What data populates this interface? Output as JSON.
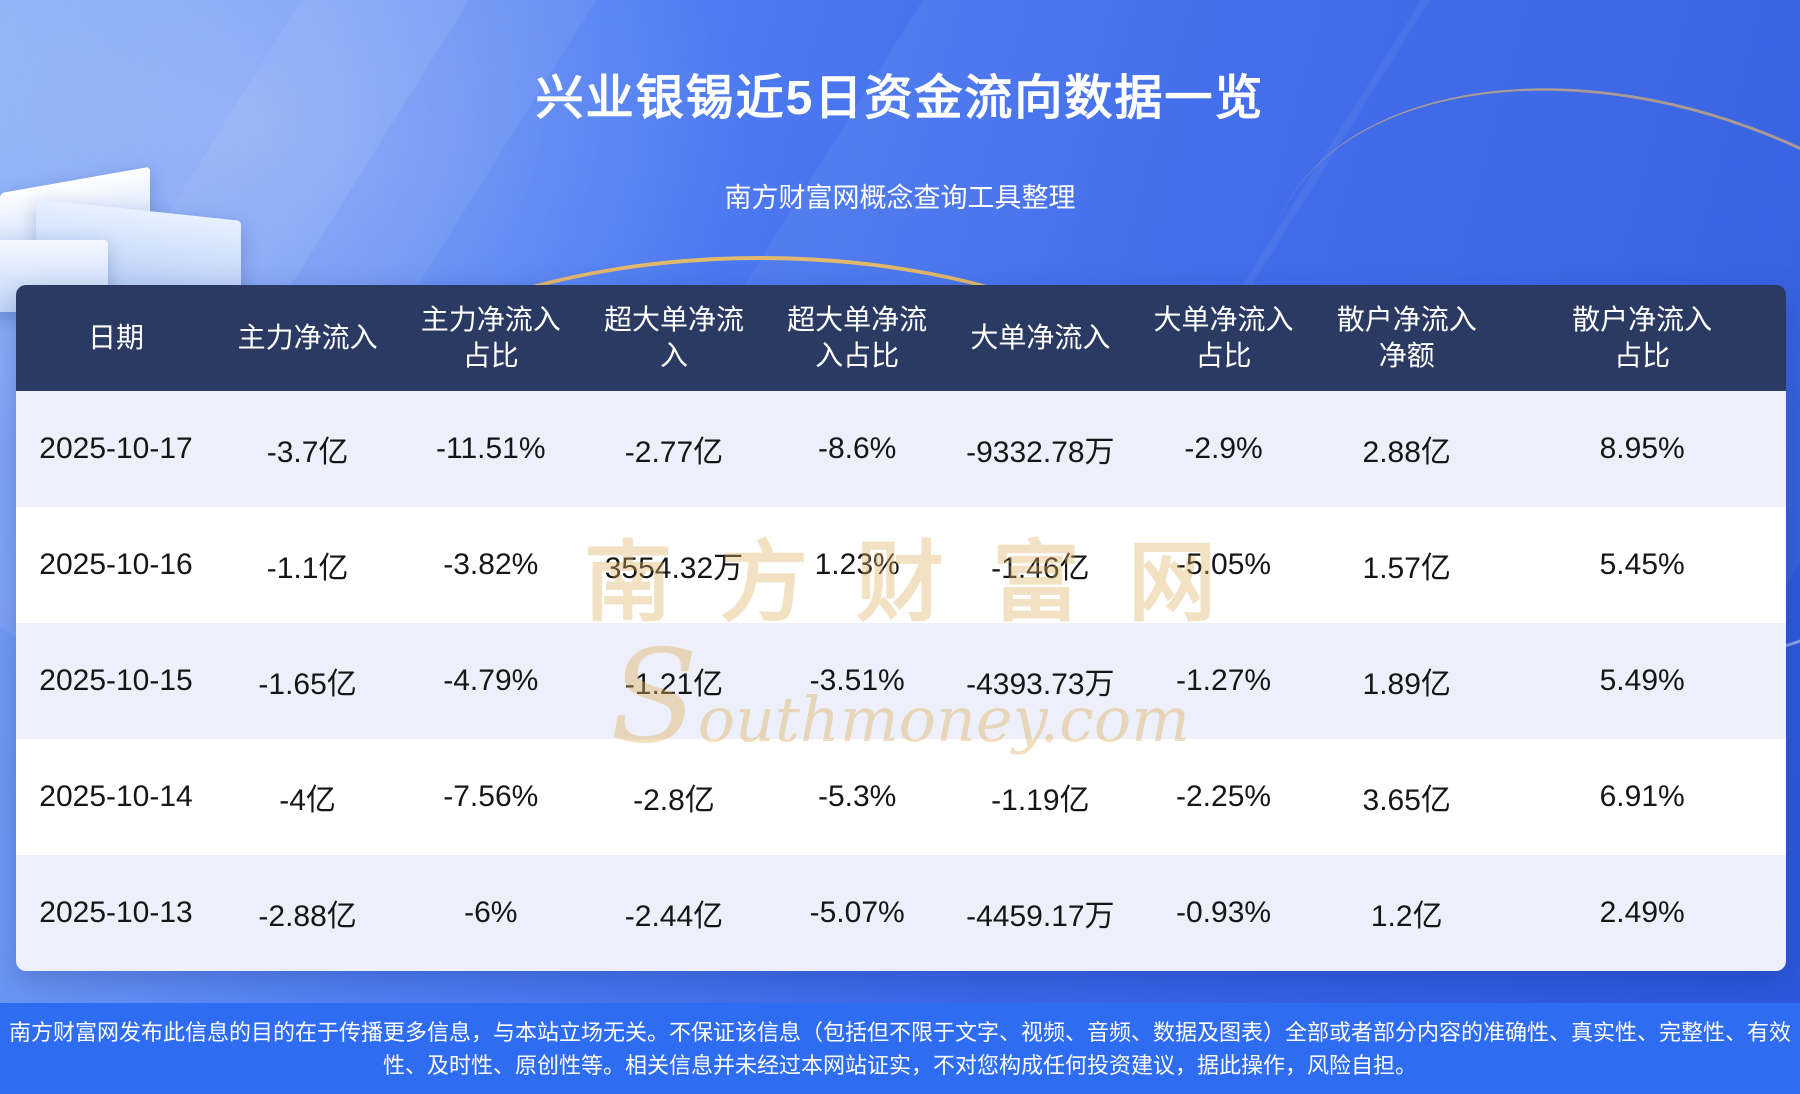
{
  "header": {
    "title": "兴业银锡近5日资金流向数据一览",
    "subtitle": "南方财富网概念查询工具整理"
  },
  "chart_data": {
    "type": "table",
    "title": "兴业银锡近5日资金流向数据一览",
    "columns": [
      "日期",
      "主力净流入",
      "主力净流入占比",
      "超大单净流入",
      "超大单净流入占比",
      "大单净流入",
      "大单净流入占比",
      "散户净流入净额",
      "散户净流入占比"
    ],
    "rows": [
      [
        "2025-10-17",
        "-3.7亿",
        "-11.51%",
        "-2.77亿",
        "-8.6%",
        "-9332.78万",
        "-2.9%",
        "2.88亿",
        "8.95%"
      ],
      [
        "2025-10-16",
        "-1.1亿",
        "-3.82%",
        "3554.32万",
        "1.23%",
        "-1.46亿",
        "-5.05%",
        "1.57亿",
        "5.45%"
      ],
      [
        "2025-10-15",
        "-1.65亿",
        "-4.79%",
        "-1.21亿",
        "-3.51%",
        "-4393.73万",
        "-1.27%",
        "1.89亿",
        "5.49%"
      ],
      [
        "2025-10-14",
        "-4亿",
        "-7.56%",
        "-2.8亿",
        "-5.3%",
        "-1.19亿",
        "-2.25%",
        "3.65亿",
        "6.91%"
      ],
      [
        "2025-10-13",
        "-2.88亿",
        "-6%",
        "-2.44亿",
        "-5.07%",
        "-4459.17万",
        "-0.93%",
        "1.2亿",
        "2.49%"
      ]
    ]
  },
  "watermark": {
    "cn": "南方财富网",
    "en": "Southmoney.com"
  },
  "footer": {
    "disclaimer": "南方财富网发布此信息的目的在于传播更多信息，与本站立场无关。不保证该信息（包括但不限于文字、视频、音频、数据及图表）全部或者部分内容的准确性、真实性、完整性、有效性、及时性、原创性等。相关信息并未经过本网站证实，不对您构成任何投资建议，据此操作，风险自担。"
  },
  "colors": {
    "table_header_bg": "#2b3a63",
    "row_alt_bg": "#edf0fa",
    "row_bg": "#ffffff",
    "footer_bg": "#2e6cf2",
    "accent_gold": "#eebb5f",
    "title_color": "#ffffff"
  }
}
